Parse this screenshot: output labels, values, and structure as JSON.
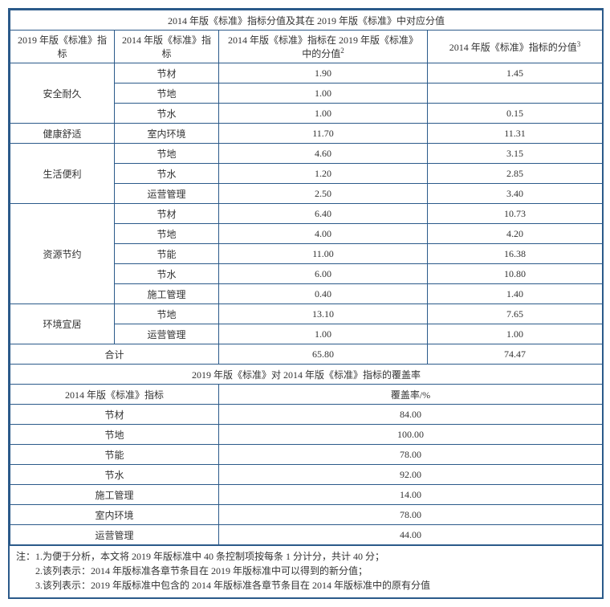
{
  "table1": {
    "title": "2014 年版《标准》指标分值及其在 2019 年版《标准》中对应分值",
    "headers": {
      "c1": "2019 年版《标准》指标",
      "c2": "2014 年版《标准》指标",
      "c3_prefix": "2014 年版《标准》指标在 2019 年版《标准》中的分值",
      "c3_sup": "2",
      "c4_prefix": "2014 年版《标准》指标的分值",
      "c4_sup": "3"
    },
    "groups": [
      {
        "label": "安全耐久",
        "rows": [
          {
            "sub": "节材",
            "v1": "1.90",
            "v2": "1.45"
          },
          {
            "sub": "节地",
            "v1": "1.00",
            "v2": ""
          },
          {
            "sub": "节水",
            "v1": "1.00",
            "v2": "0.15"
          }
        ]
      },
      {
        "label": "健康舒适",
        "rows": [
          {
            "sub": "室内环境",
            "v1": "11.70",
            "v2": "11.31"
          }
        ]
      },
      {
        "label": "生活便利",
        "rows": [
          {
            "sub": "节地",
            "v1": "4.60",
            "v2": "3.15"
          },
          {
            "sub": "节水",
            "v1": "1.20",
            "v2": "2.85"
          },
          {
            "sub": "运营管理",
            "v1": "2.50",
            "v2": "3.40"
          }
        ]
      },
      {
        "label": "资源节约",
        "rows": [
          {
            "sub": "节材",
            "v1": "6.40",
            "v2": "10.73"
          },
          {
            "sub": "节地",
            "v1": "4.00",
            "v2": "4.20"
          },
          {
            "sub": "节能",
            "v1": "11.00",
            "v2": "16.38"
          },
          {
            "sub": "节水",
            "v1": "6.00",
            "v2": "10.80"
          },
          {
            "sub": "施工管理",
            "v1": "0.40",
            "v2": "1.40"
          }
        ]
      },
      {
        "label": "环境宜居",
        "rows": [
          {
            "sub": "节地",
            "v1": "13.10",
            "v2": "7.65"
          },
          {
            "sub": "运营管理",
            "v1": "1.00",
            "v2": "1.00"
          }
        ]
      }
    ],
    "total": {
      "label": "合计",
      "v1": "65.80",
      "v2": "74.47"
    }
  },
  "table2": {
    "title": "2019  年版《标准》对 2014 年版《标准》指标的覆盖率",
    "headers": {
      "c1": "2014 年版《标准》指标",
      "c2": "覆盖率/%"
    },
    "rows": [
      {
        "label": "节材",
        "val": "84.00"
      },
      {
        "label": "节地",
        "val": "100.00"
      },
      {
        "label": "节能",
        "val": "78.00"
      },
      {
        "label": "节水",
        "val": "92.00"
      },
      {
        "label": "施工管理",
        "val": "14.00"
      },
      {
        "label": "室内环境",
        "val": "78.00"
      },
      {
        "label": "运营管理",
        "val": "44.00"
      }
    ]
  },
  "notes": {
    "n1": "注：1.为便于分析，本文将 2019 年版标准中 40 条控制项按每条 1 分计分，共计 40 分；",
    "n2": "2.该列表示：2014 年版标准各章节条目在 2019 年版标准中可以得到的新分值；",
    "n3": "3.该列表示：2019 年版标准中包含的 2014 年版标准各章节条目在 2014 年版标准中的原有分值"
  }
}
